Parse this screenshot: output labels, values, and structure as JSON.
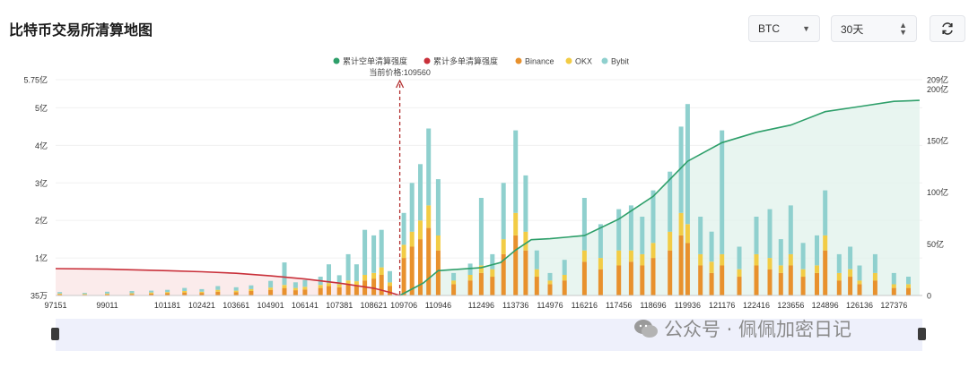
{
  "page": {
    "title": "比特币交易所清算地图"
  },
  "controls": {
    "coin_selected": "BTC",
    "period_selected": "30天",
    "refresh_icon": "refresh-icon"
  },
  "watermark": {
    "text": "公众号 · 佩佩加密日记"
  },
  "chart_data": {
    "type": "bar",
    "legend": [
      {
        "name": "累计空单清算强度",
        "color": "#2e9f6a",
        "kind": "line"
      },
      {
        "name": "累计多单清算强度",
        "color": "#c9303a",
        "kind": "line"
      },
      {
        "name": "Binance",
        "color": "#e8912d",
        "kind": "bar"
      },
      {
        "name": "OKX",
        "color": "#f2cc45",
        "kind": "bar"
      },
      {
        "name": "Bybit",
        "color": "#8fd0ce",
        "kind": "bar"
      }
    ],
    "current_price_label": "当前价格:109560",
    "current_price": 109560,
    "x_ticks": [
      "97151",
      "99011",
      "101181",
      "102421",
      "103661",
      "104901",
      "106141",
      "107381",
      "108621",
      "109706",
      "110946",
      "112496",
      "113736",
      "114976",
      "116216",
      "117456",
      "118696",
      "119936",
      "121176",
      "122416",
      "123656",
      "124896",
      "126136",
      "127376"
    ],
    "x_range": [
      97151,
      128400
    ],
    "y_left_ticks": [
      "35万",
      "1亿",
      "2亿",
      "3亿",
      "4亿",
      "5亿",
      "5.75亿"
    ],
    "y_left_values": [
      0.0035,
      1,
      2,
      3,
      4,
      5,
      5.75
    ],
    "y_left_unit": "亿",
    "y_left_range": [
      0,
      5.75
    ],
    "y_right_ticks": [
      "0",
      "50亿",
      "100亿",
      "150亿",
      "200亿",
      "209亿"
    ],
    "y_right_values": [
      0,
      50,
      100,
      150,
      200,
      209
    ],
    "y_right_range": [
      0,
      209
    ],
    "long_cumulative": {
      "x": [
        97151,
        99011,
        101181,
        102421,
        103661,
        104901,
        106141,
        107381,
        108621,
        109200,
        109560
      ],
      "y": [
        26,
        25.5,
        24,
        23,
        21.5,
        19,
        16,
        12,
        7,
        3,
        0
      ]
    },
    "short_cumulative": {
      "x": [
        109560,
        110400,
        110946,
        112496,
        113200,
        113736,
        114300,
        114976,
        116216,
        117456,
        118696,
        119936,
        121176,
        122416,
        123656,
        124896,
        126136,
        127376,
        128300
      ],
      "y": [
        0,
        12,
        24,
        27,
        32,
        44,
        54,
        55,
        58,
        74,
        96,
        130,
        148,
        158,
        165,
        178,
        183,
        188,
        189
      ]
    },
    "bars": [
      {
        "x": 97300,
        "b": 0.03,
        "o": 0.02,
        "y": 0.04
      },
      {
        "x": 98200,
        "b": 0.02,
        "o": 0.02,
        "y": 0.03
      },
      {
        "x": 99011,
        "b": 0.03,
        "o": 0.02,
        "y": 0.05
      },
      {
        "x": 99900,
        "b": 0.04,
        "o": 0.02,
        "y": 0.06
      },
      {
        "x": 100600,
        "b": 0.05,
        "o": 0.03,
        "y": 0.05
      },
      {
        "x": 101181,
        "b": 0.06,
        "o": 0.03,
        "y": 0.06
      },
      {
        "x": 101800,
        "b": 0.08,
        "o": 0.04,
        "y": 0.08
      },
      {
        "x": 102421,
        "b": 0.07,
        "o": 0.03,
        "y": 0.07
      },
      {
        "x": 103000,
        "b": 0.1,
        "o": 0.05,
        "y": 0.1
      },
      {
        "x": 103661,
        "b": 0.09,
        "o": 0.04,
        "y": 0.09
      },
      {
        "x": 104200,
        "b": 0.12,
        "o": 0.05,
        "y": 0.1
      },
      {
        "x": 104901,
        "b": 0.15,
        "o": 0.06,
        "y": 0.18
      },
      {
        "x": 105400,
        "b": 0.2,
        "o": 0.08,
        "y": 0.6
      },
      {
        "x": 105800,
        "b": 0.14,
        "o": 0.06,
        "y": 0.15
      },
      {
        "x": 106141,
        "b": 0.16,
        "o": 0.07,
        "y": 0.18
      },
      {
        "x": 106700,
        "b": 0.2,
        "o": 0.08,
        "y": 0.22
      },
      {
        "x": 107000,
        "b": 0.25,
        "o": 0.08,
        "y": 0.5
      },
      {
        "x": 107381,
        "b": 0.22,
        "o": 0.08,
        "y": 0.24
      },
      {
        "x": 107700,
        "b": 0.3,
        "o": 0.1,
        "y": 0.7
      },
      {
        "x": 108000,
        "b": 0.28,
        "o": 0.1,
        "y": 0.45
      },
      {
        "x": 108300,
        "b": 0.4,
        "o": 0.15,
        "y": 1.2
      },
      {
        "x": 108621,
        "b": 0.45,
        "o": 0.15,
        "y": 1.0
      },
      {
        "x": 108900,
        "b": 0.55,
        "o": 0.2,
        "y": 1.0
      },
      {
        "x": 109200,
        "b": 0.25,
        "o": 0.1,
        "y": 0.3
      },
      {
        "x": 109706,
        "b": 1.0,
        "o": 0.35,
        "y": 0.85
      },
      {
        "x": 110000,
        "b": 1.3,
        "o": 0.4,
        "y": 1.3
      },
      {
        "x": 110300,
        "b": 1.5,
        "o": 0.5,
        "y": 1.5
      },
      {
        "x": 110600,
        "b": 1.8,
        "o": 0.6,
        "y": 2.05
      },
      {
        "x": 110946,
        "b": 1.2,
        "o": 0.4,
        "y": 1.5
      },
      {
        "x": 111500,
        "b": 0.3,
        "o": 0.1,
        "y": 0.2
      },
      {
        "x": 112100,
        "b": 0.4,
        "o": 0.15,
        "y": 0.3
      },
      {
        "x": 112496,
        "b": 0.6,
        "o": 0.2,
        "y": 1.8
      },
      {
        "x": 112900,
        "b": 0.5,
        "o": 0.2,
        "y": 0.4
      },
      {
        "x": 113300,
        "b": 1.1,
        "o": 0.4,
        "y": 1.5
      },
      {
        "x": 113736,
        "b": 1.6,
        "o": 0.6,
        "y": 2.2
      },
      {
        "x": 114100,
        "b": 1.2,
        "o": 0.5,
        "y": 1.5
      },
      {
        "x": 114500,
        "b": 0.5,
        "o": 0.2,
        "y": 0.5
      },
      {
        "x": 114976,
        "b": 0.3,
        "o": 0.1,
        "y": 0.2
      },
      {
        "x": 115500,
        "b": 0.4,
        "o": 0.15,
        "y": 0.4
      },
      {
        "x": 116216,
        "b": 0.9,
        "o": 0.3,
        "y": 1.4
      },
      {
        "x": 116800,
        "b": 0.7,
        "o": 0.3,
        "y": 0.9
      },
      {
        "x": 117456,
        "b": 0.8,
        "o": 0.4,
        "y": 1.1
      },
      {
        "x": 117900,
        "b": 0.9,
        "o": 0.3,
        "y": 1.2
      },
      {
        "x": 118300,
        "b": 0.8,
        "o": 0.3,
        "y": 1.0
      },
      {
        "x": 118696,
        "b": 1.0,
        "o": 0.4,
        "y": 1.4
      },
      {
        "x": 119300,
        "b": 1.2,
        "o": 0.5,
        "y": 1.6
      },
      {
        "x": 119700,
        "b": 1.6,
        "o": 0.6,
        "y": 2.3
      },
      {
        "x": 119936,
        "b": 1.4,
        "o": 0.5,
        "y": 3.2
      },
      {
        "x": 120400,
        "b": 0.8,
        "o": 0.3,
        "y": 1.0
      },
      {
        "x": 120800,
        "b": 0.6,
        "o": 0.3,
        "y": 0.8
      },
      {
        "x": 121176,
        "b": 0.8,
        "o": 0.3,
        "y": 3.3
      },
      {
        "x": 121800,
        "b": 0.5,
        "o": 0.2,
        "y": 0.6
      },
      {
        "x": 122416,
        "b": 0.8,
        "o": 0.3,
        "y": 1.0
      },
      {
        "x": 122900,
        "b": 0.7,
        "o": 0.3,
        "y": 1.3
      },
      {
        "x": 123300,
        "b": 0.6,
        "o": 0.2,
        "y": 0.7
      },
      {
        "x": 123656,
        "b": 0.8,
        "o": 0.3,
        "y": 1.3
      },
      {
        "x": 124100,
        "b": 0.5,
        "o": 0.2,
        "y": 0.7
      },
      {
        "x": 124600,
        "b": 0.6,
        "o": 0.2,
        "y": 0.8
      },
      {
        "x": 124896,
        "b": 1.2,
        "o": 0.4,
        "y": 1.2
      },
      {
        "x": 125400,
        "b": 0.4,
        "o": 0.2,
        "y": 0.5
      },
      {
        "x": 125800,
        "b": 0.5,
        "o": 0.2,
        "y": 0.6
      },
      {
        "x": 126136,
        "b": 0.3,
        "o": 0.1,
        "y": 0.4
      },
      {
        "x": 126700,
        "b": 0.4,
        "o": 0.2,
        "y": 0.5
      },
      {
        "x": 127376,
        "b": 0.2,
        "o": 0.1,
        "y": 0.3
      },
      {
        "x": 127900,
        "b": 0.2,
        "o": 0.1,
        "y": 0.2
      }
    ]
  }
}
